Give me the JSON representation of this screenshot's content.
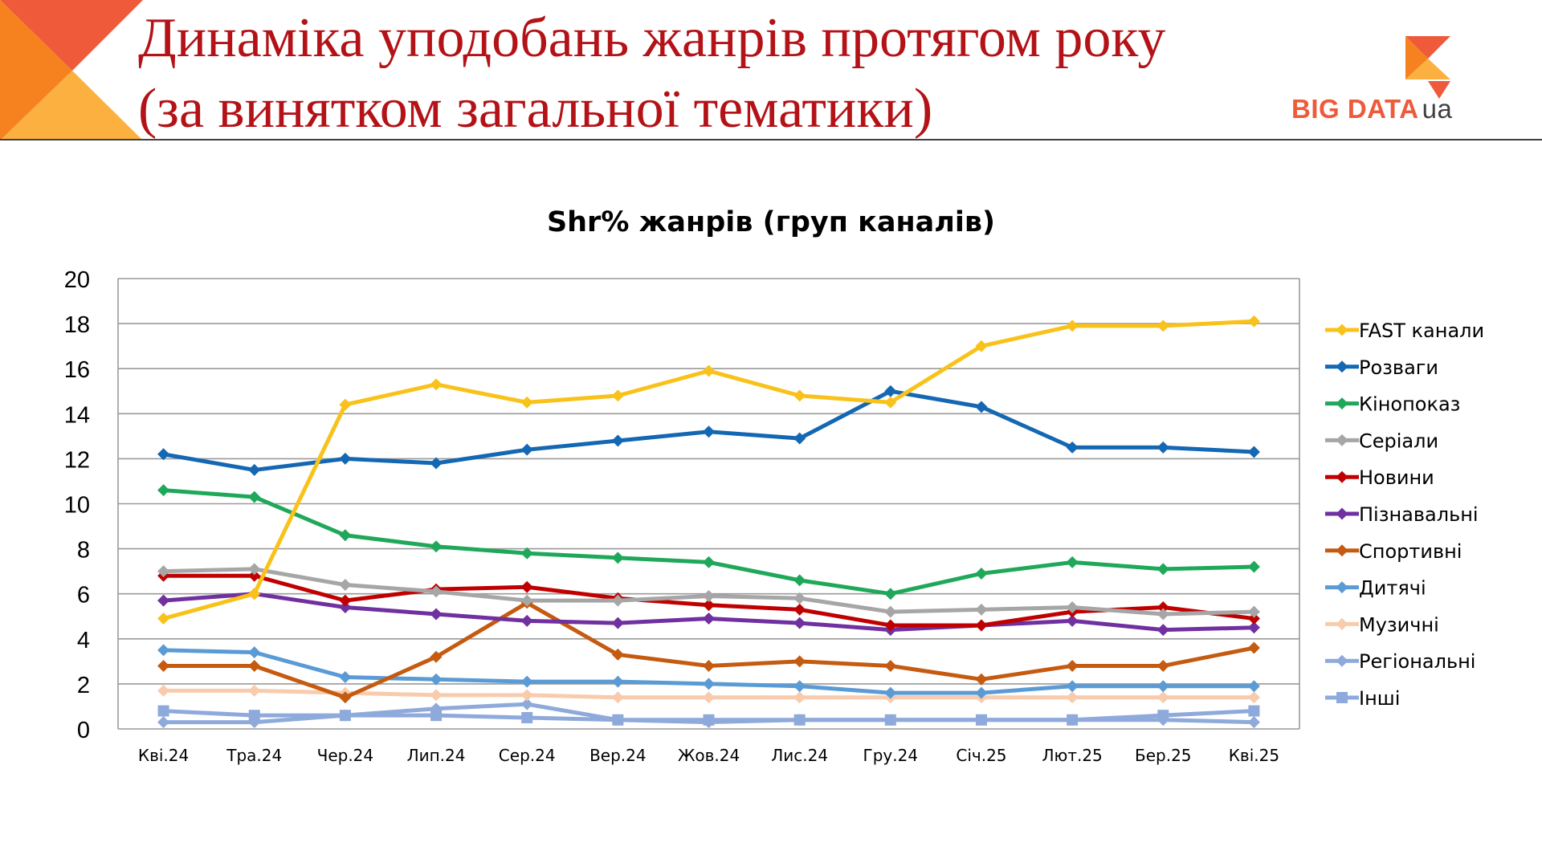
{
  "slide": {
    "title_line1": "Динаміка уподобань жанрів протягом року",
    "title_line2": "(за винятком загальної тематики)",
    "title_color": "#b31217",
    "accent_colors": [
      "#f6821f",
      "#fbb040",
      "#ee5a3a"
    ]
  },
  "logo": {
    "main": "BIG DATA",
    "suffix": "ua"
  },
  "chart_data": {
    "type": "line",
    "title": "Shr% жанрів (груп каналів)",
    "xlabel": "",
    "ylabel": "",
    "ylim": [
      0,
      20
    ],
    "yticks": [
      0,
      2,
      4,
      6,
      8,
      10,
      12,
      14,
      16,
      18,
      20
    ],
    "grid": true,
    "legend_position": "right",
    "categories": [
      "Кві.24",
      "Тра.24",
      "Чер.24",
      "Лип.24",
      "Сер.24",
      "Вер.24",
      "Жов.24",
      "Лис.24",
      "Гру.24",
      "Січ.25",
      "Лют.25",
      "Бер.25",
      "Кві.25"
    ],
    "series": [
      {
        "name": "FAST канали",
        "color": "#f9c21a",
        "marker": "diamond",
        "values": [
          4.9,
          6.0,
          14.4,
          15.3,
          14.5,
          14.8,
          15.9,
          14.8,
          14.5,
          17.0,
          17.9,
          17.9,
          18.1
        ]
      },
      {
        "name": "Розваги",
        "color": "#1367b3",
        "marker": "diamond",
        "values": [
          12.2,
          11.5,
          12.0,
          11.8,
          12.4,
          12.8,
          13.2,
          12.9,
          15.0,
          14.3,
          12.5,
          12.5,
          12.3
        ]
      },
      {
        "name": "Кінопоказ",
        "color": "#1fa85a",
        "marker": "diamond",
        "values": [
          10.6,
          10.3,
          8.6,
          8.1,
          7.8,
          7.6,
          7.4,
          6.6,
          6.0,
          6.9,
          7.4,
          7.1,
          7.2
        ]
      },
      {
        "name": "Серіали",
        "color": "#a6a6a6",
        "marker": "diamond",
        "values": [
          7.0,
          7.1,
          6.4,
          6.1,
          5.7,
          5.7,
          5.9,
          5.8,
          5.2,
          5.3,
          5.4,
          5.1,
          5.2
        ]
      },
      {
        "name": "Новини",
        "color": "#c00000",
        "marker": "diamond",
        "values": [
          6.8,
          6.8,
          5.7,
          6.2,
          6.3,
          5.8,
          5.5,
          5.3,
          4.6,
          4.6,
          5.2,
          5.4,
          4.9
        ]
      },
      {
        "name": "Пізнавальні",
        "color": "#7030a0",
        "marker": "diamond",
        "values": [
          5.7,
          6.0,
          5.4,
          5.1,
          4.8,
          4.7,
          4.9,
          4.7,
          4.4,
          4.6,
          4.8,
          4.4,
          4.5
        ]
      },
      {
        "name": "Спортивні",
        "color": "#c55a11",
        "marker": "diamond",
        "values": [
          2.8,
          2.8,
          1.4,
          3.2,
          5.6,
          3.3,
          2.8,
          3.0,
          2.8,
          2.2,
          2.8,
          2.8,
          3.6
        ]
      },
      {
        "name": "Дитячі",
        "color": "#5b9bd5",
        "marker": "diamond",
        "values": [
          3.5,
          3.4,
          2.3,
          2.2,
          2.1,
          2.1,
          2.0,
          1.9,
          1.6,
          1.6,
          1.9,
          1.9,
          1.9
        ]
      },
      {
        "name": "Музичні",
        "color": "#f8cbad",
        "marker": "diamond",
        "values": [
          1.7,
          1.7,
          1.6,
          1.5,
          1.5,
          1.4,
          1.4,
          1.4,
          1.4,
          1.4,
          1.4,
          1.4,
          1.4
        ]
      },
      {
        "name": "Регіональні",
        "color": "#8eaadb",
        "marker": "diamond",
        "values": [
          0.3,
          0.3,
          0.6,
          0.9,
          1.1,
          0.4,
          0.3,
          0.4,
          0.4,
          0.4,
          0.4,
          0.4,
          0.3
        ]
      },
      {
        "name": "Інші",
        "color": "#8ea9db",
        "marker": "square",
        "values": [
          0.8,
          0.6,
          0.6,
          0.6,
          0.5,
          0.4,
          0.4,
          0.4,
          0.4,
          0.4,
          0.4,
          0.6,
          0.8
        ]
      }
    ]
  }
}
